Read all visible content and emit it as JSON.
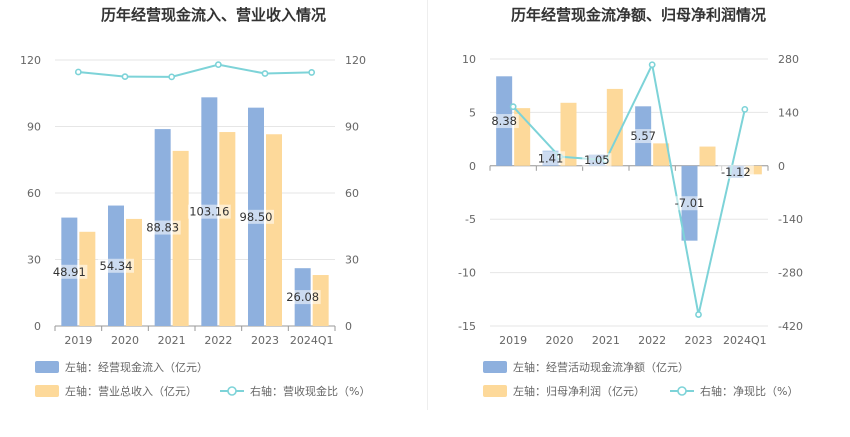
{
  "charts": {
    "left_title": "历年经营现金流入、营业收入情况",
    "right_title": "历年经营现金流净额、归母净利润情况"
  },
  "colors": {
    "blue": "#8eb0de",
    "orange": "#fdd99a",
    "line": "#7dd3d8",
    "grid": "#e6e6e6",
    "axis_text": "#666666"
  },
  "chart_data": [
    {
      "type": "bar",
      "title": "历年经营现金流入、营业收入情况",
      "categories": [
        "2019",
        "2020",
        "2021",
        "2022",
        "2023",
        "2024Q1"
      ],
      "left_axis": {
        "ticks": [
          "0",
          "30",
          "60",
          "90",
          "120"
        ],
        "ylim": [
          0,
          120
        ]
      },
      "right_axis": {
        "ticks": [
          "0",
          "30",
          "60",
          "90",
          "120"
        ],
        "ylim": [
          0,
          120
        ]
      },
      "series": [
        {
          "name": "左轴：经营现金流入（亿元）",
          "axis": "left",
          "kind": "bar",
          "values": [
            48.91,
            54.34,
            88.83,
            103.16,
            98.5,
            26.08
          ],
          "labels": [
            "48.91",
            "54.34",
            "88.83",
            "103.16",
            "98.50",
            "26.08"
          ]
        },
        {
          "name": "左轴：营业总收入（亿元）",
          "axis": "left",
          "kind": "bar",
          "values": [
            42.5,
            48.3,
            79.0,
            87.5,
            86.5,
            23.0
          ]
        },
        {
          "name": "右轴：营收现金比（%）",
          "axis": "right",
          "kind": "line",
          "values": [
            114.6,
            112.5,
            112.4,
            117.9,
            113.9,
            114.4
          ]
        }
      ],
      "legend": "bottom"
    },
    {
      "type": "bar",
      "title": "历年经营现金流净额、归母净利润情况",
      "categories": [
        "2019",
        "2020",
        "2021",
        "2022",
        "2023",
        "2024Q1"
      ],
      "left_axis": {
        "ticks": [
          "10",
          "5",
          "0",
          "-5",
          "-10",
          "-15"
        ],
        "ylim": [
          -15,
          10
        ]
      },
      "right_axis": {
        "ticks": [
          "280",
          "140",
          "0",
          "-140",
          "-280",
          "-420"
        ],
        "ylim": [
          -420,
          280
        ]
      },
      "series": [
        {
          "name": "左轴：经营活动现金流净额（亿元）",
          "axis": "left",
          "kind": "bar",
          "values": [
            8.38,
            1.41,
            1.05,
            5.57,
            -7.01,
            -1.12
          ],
          "labels": [
            "8.38",
            "1.41",
            "1.05",
            "5.57",
            "-7.01",
            "-1.12"
          ]
        },
        {
          "name": "左轴：归母净利润（亿元）",
          "axis": "left",
          "kind": "bar",
          "values": [
            5.4,
            5.9,
            7.2,
            2.1,
            1.8,
            -0.8
          ]
        },
        {
          "name": "右轴：净现比（%）",
          "axis": "right",
          "kind": "line",
          "values": [
            155.0,
            24.0,
            15.0,
            265.0,
            -390.0,
            148.0
          ]
        }
      ],
      "legend": "bottom"
    }
  ]
}
